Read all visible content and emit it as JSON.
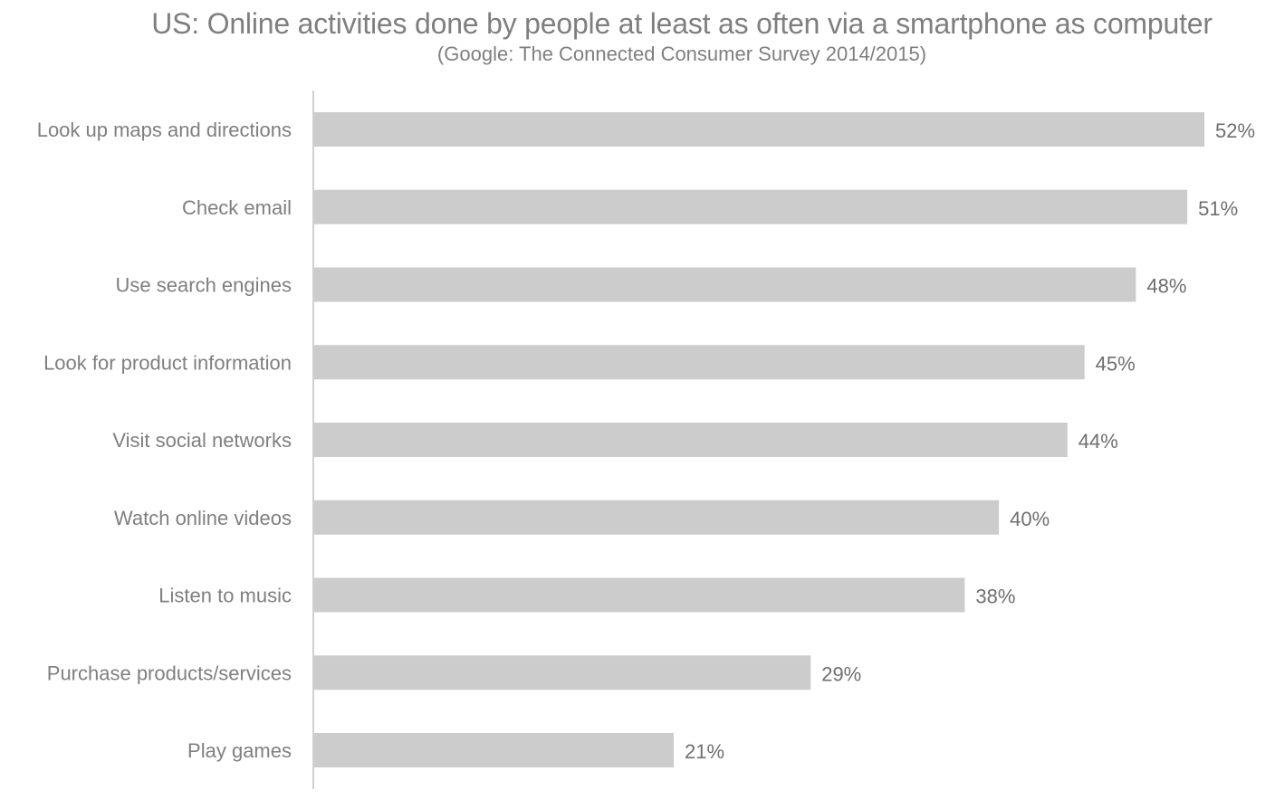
{
  "colors": {
    "bar": "#cccccc",
    "axis": "#d0d0d0",
    "text": "#7f7f7f"
  },
  "chart_data": {
    "type": "bar",
    "orientation": "horizontal",
    "title": "US: Online activities done by people at least as often via a smartphone as computer",
    "subtitle": "(Google: The Connected Consumer Survey 2014/2015)",
    "categories": [
      "Look up maps and directions",
      "Check email",
      "Use search engines",
      "Look for product information",
      "Visit social networks",
      "Watch online videos",
      "Listen to music",
      "Purchase products/services",
      "Play games"
    ],
    "values": [
      52,
      51,
      48,
      45,
      44,
      40,
      38,
      29,
      21
    ],
    "value_labels": [
      "52%",
      "51%",
      "48%",
      "45%",
      "44%",
      "40%",
      "38%",
      "29%",
      "21%"
    ],
    "xlabel": "",
    "ylabel": "",
    "xlim": [
      0,
      52
    ],
    "grid": false,
    "legend": "none"
  }
}
